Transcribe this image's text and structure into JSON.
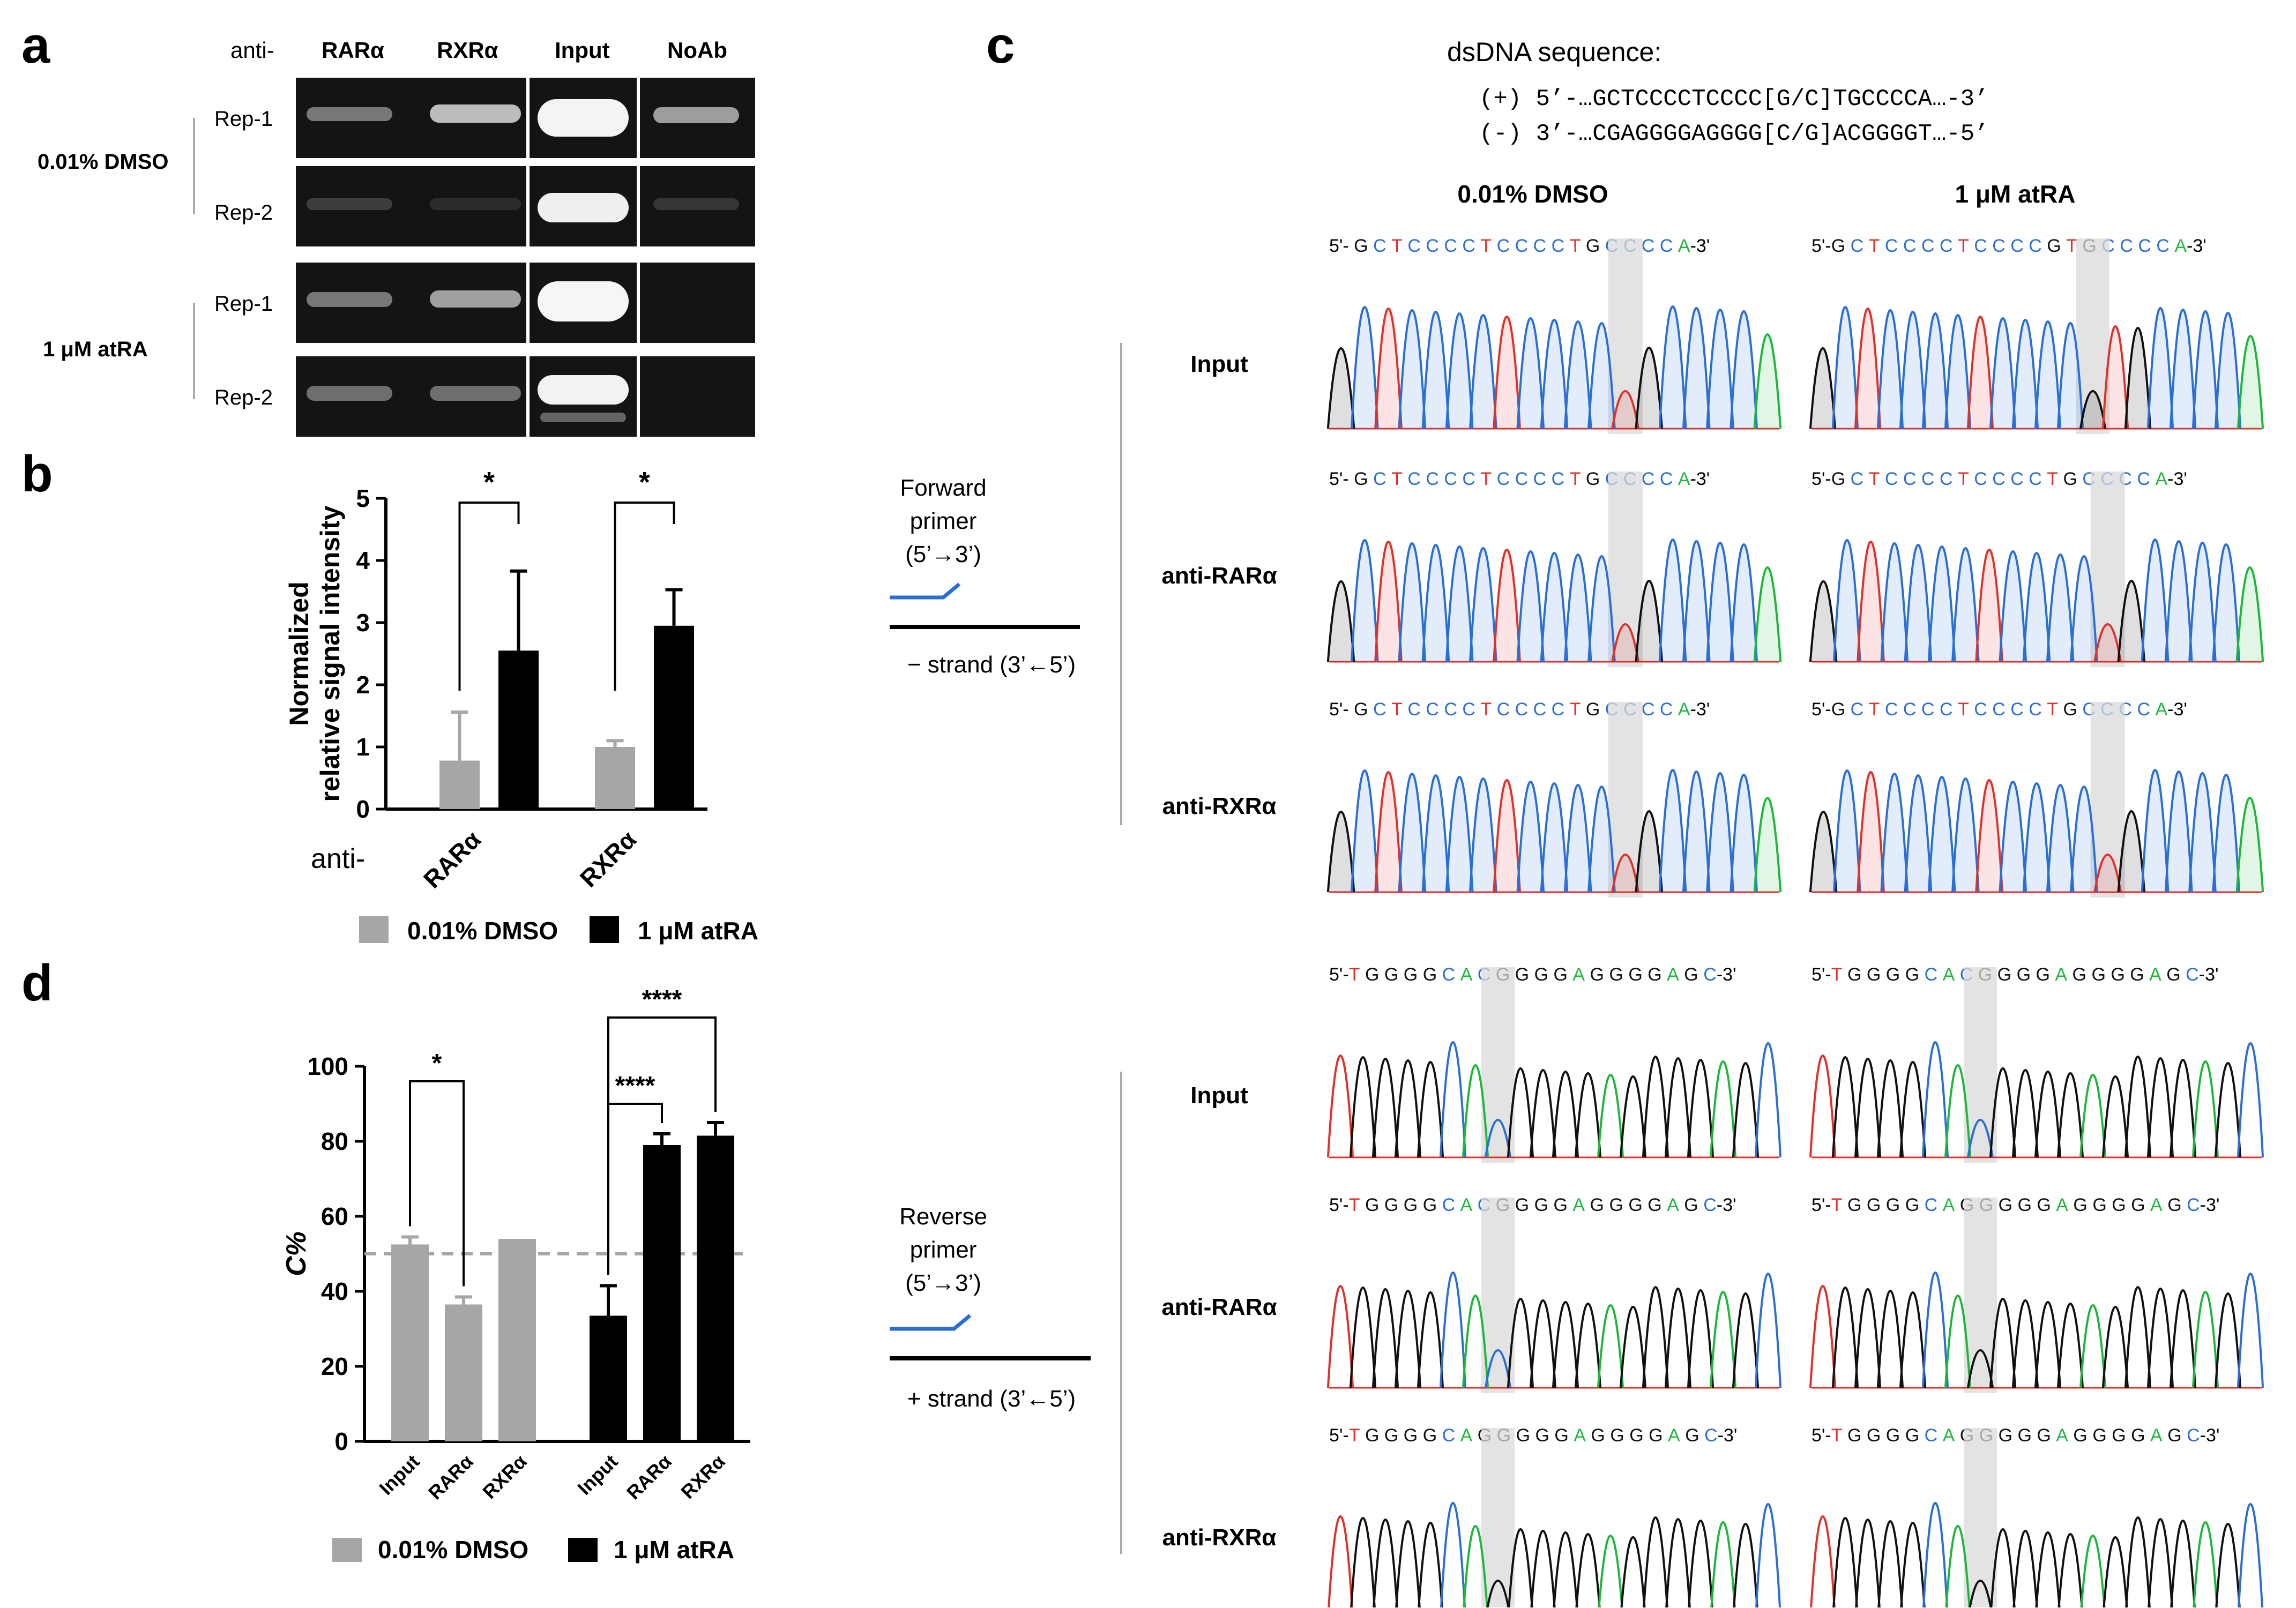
{
  "panel_a": {
    "letter": "a",
    "anti_label": "anti-",
    "columns": [
      "RARα",
      "RXRα",
      "Input",
      "NoAb"
    ],
    "conditions": [
      "0.01% DMSO",
      "1 μM atRA"
    ],
    "replicates": [
      "Rep-1",
      "Rep-2"
    ]
  },
  "panel_b": {
    "letter": "b"
  },
  "panel_c": {
    "letter": "c",
    "title": "dsDNA sequence:",
    "plus_strand": "(+) 5’-…GCTCCCCTCCCC[G/C]TGCCCCA…-3’",
    "minus_strand": "(-) 3’-…CGAGGGGAGGGG[C/G]ACGGGGT…-5’",
    "col_headers": [
      "0.01% DMSO",
      "1 μM atRA"
    ],
    "row_labels": [
      "Input",
      "anti-RARα",
      "anti-RXRα"
    ],
    "forward_primer": [
      "Forward",
      "primer",
      "(5’→3’)"
    ],
    "forward_strand": "− strand (3’←5’)",
    "reverse_primer": [
      "Reverse",
      "primer",
      "(5’→3’)"
    ],
    "reverse_strand": "+ strand (3’←5’)",
    "top_seqs": [
      [
        "5'- G C T C C C C T C C C C T G C C C C A-3'",
        "5'-G C T C C C C T C C C C G T G C C C C A-3'"
      ],
      [
        "5'- G C T C C C C T C C C C T G C C C C A-3'",
        "5'-G C T C C C C T C C C C T G C C C C A-3'"
      ],
      [
        "5'- G C T C C C C T C C C C T G C C C C A-3'",
        "5'-G C T C C C C T C C C C T G C C C C A-3'"
      ]
    ],
    "bottom_seqs": [
      [
        "5'-T G G G G C A C G G G G A G G G G A G C-3'",
        "5'-T G G G G C A C G G G G A G G G G A G C-3'"
      ],
      [
        "5'-T G G G G C A C G G G G A G G G G A G C-3'",
        "5'-T G G G G C A G G G G G A G G G G A G C-3'"
      ],
      [
        "5'-T G G G G C A G G G G G A G G G G A G C-3'",
        "5'-T G G G G C A G G G G G A G G G G A G C-3'"
      ]
    ]
  },
  "panel_d": {
    "letter": "d"
  },
  "colors": {
    "dmso": "#a6a6a6",
    "atra": "#000000",
    "base_A": "#1db83a",
    "base_C": "#2a6fd6",
    "base_G": "#111111",
    "base_T": "#e0322a"
  },
  "chart_data": [
    {
      "id": "b",
      "type": "bar",
      "ylabel": "Normalized relative signal intensity",
      "xlabel_prefix": "anti-",
      "categories": [
        "RARα",
        "RXRα"
      ],
      "ylim": [
        0,
        5
      ],
      "yticks": [
        0,
        1,
        2,
        3,
        4,
        5
      ],
      "series": [
        {
          "name": "0.01% DMSO",
          "values": [
            0.78,
            1.0
          ],
          "errors": [
            0.78,
            0.1
          ]
        },
        {
          "name": "1 μM atRA",
          "values": [
            2.55,
            2.95
          ],
          "errors": [
            1.28,
            0.58
          ]
        }
      ],
      "significance": [
        "*",
        "*"
      ]
    },
    {
      "id": "d",
      "type": "bar",
      "ylabel": "C%",
      "ylim": [
        0,
        100
      ],
      "yticks": [
        0,
        20,
        40,
        60,
        80,
        100
      ],
      "reference_line": 50,
      "groups": [
        {
          "name": "0.01% DMSO",
          "categories": [
            "Input",
            "RARα",
            "RXRα"
          ],
          "values": [
            52.5,
            36.5,
            54
          ],
          "errors": [
            2,
            2,
            0
          ]
        },
        {
          "name": "1 μM atRA",
          "categories": [
            "Input",
            "RARα",
            "RXRα"
          ],
          "values": [
            33.5,
            79,
            81.5
          ],
          "errors": [
            8,
            3,
            3.5
          ]
        }
      ],
      "significance": [
        "*",
        "****",
        "****"
      ]
    }
  ]
}
